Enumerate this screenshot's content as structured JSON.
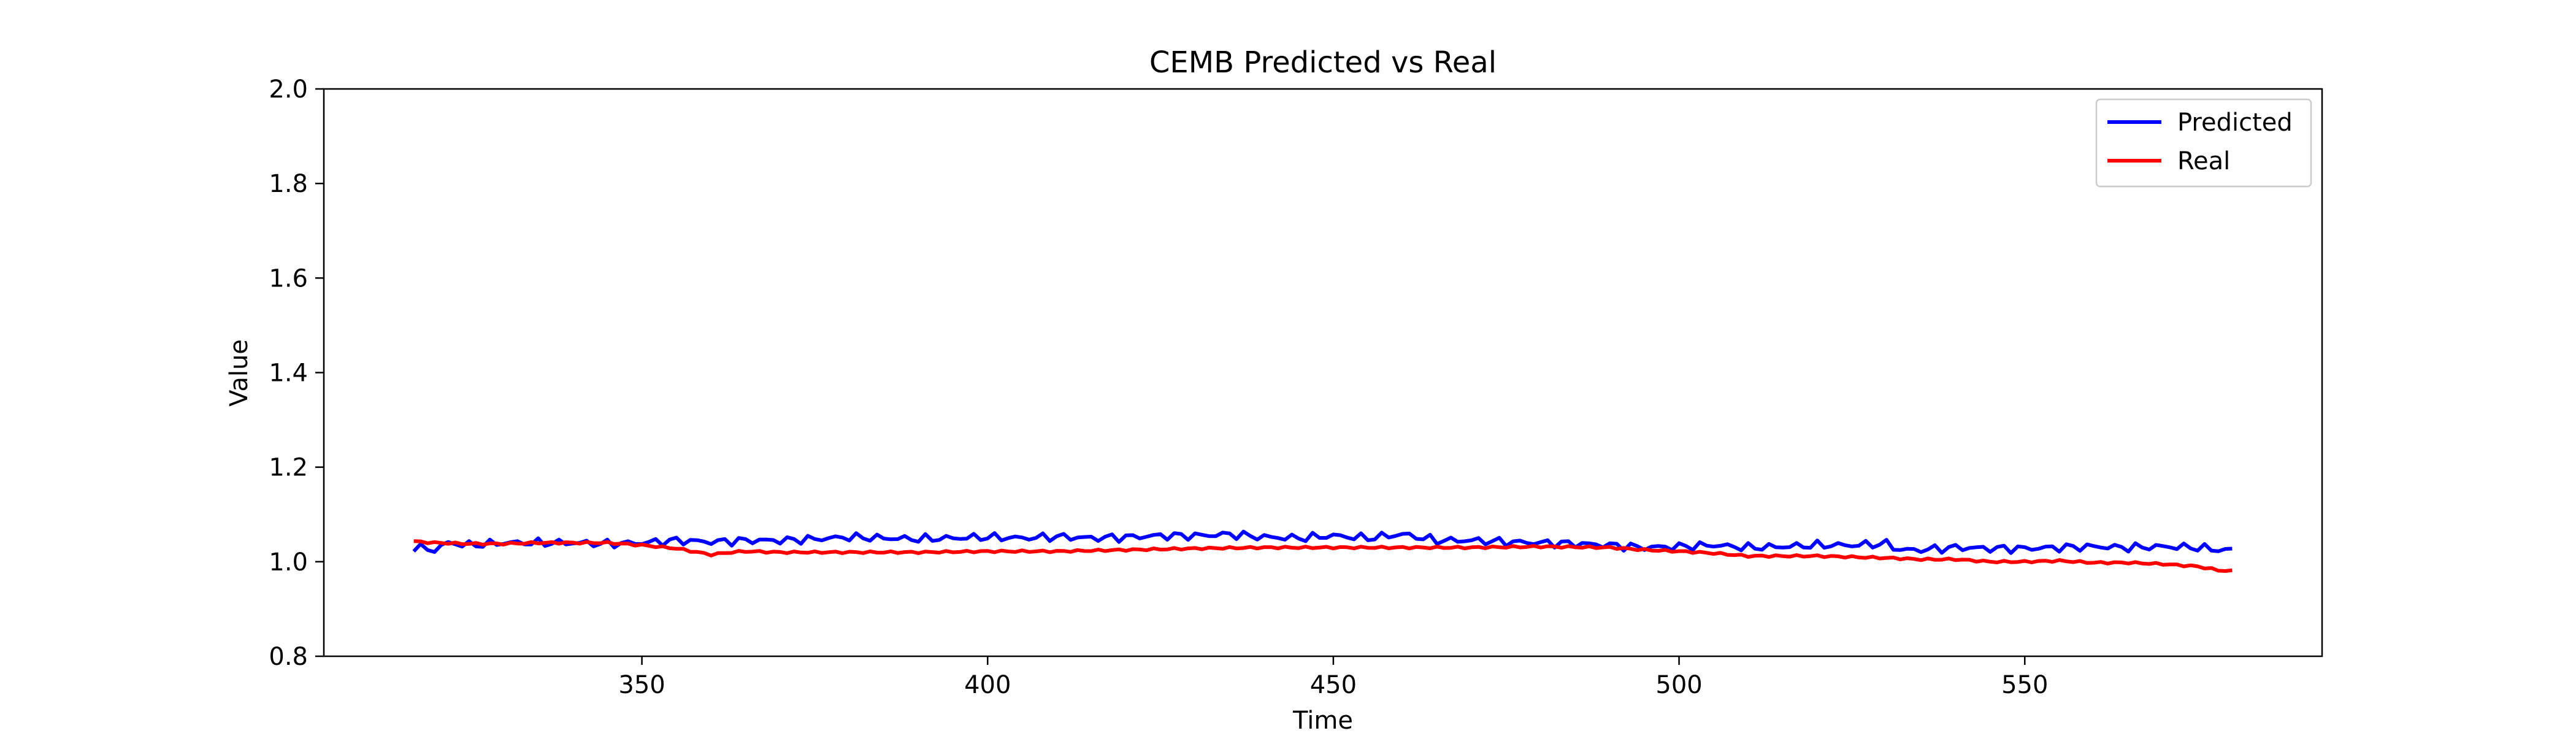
{
  "chart_data": {
    "type": "line",
    "title": "CEMB Predicted vs Real",
    "xlabel": "Time",
    "ylabel": "Value",
    "xlim": [
      304,
      593
    ],
    "ylim": [
      0.8,
      2.0
    ],
    "xticks": [
      350,
      400,
      450,
      500,
      550
    ],
    "yticks": [
      0.8,
      1.0,
      1.2,
      1.4,
      1.6,
      1.8,
      2.0
    ],
    "xtick_labels": [
      "350",
      "400",
      "450",
      "500",
      "550"
    ],
    "ytick_labels": [
      "0.8",
      "1.0",
      "1.2",
      "1.4",
      "1.6",
      "1.8",
      "2.0"
    ],
    "grid": false,
    "legend_position": "top-right",
    "x_start": 317,
    "x_end": 580,
    "series": [
      {
        "name": "Predicted",
        "color": "#0000ff",
        "keypoints": [
          [
            317,
            1.03
          ],
          [
            320,
            1.025
          ],
          [
            322,
            1.04
          ],
          [
            325,
            1.035
          ],
          [
            330,
            1.04
          ],
          [
            335,
            1.04
          ],
          [
            340,
            1.04
          ],
          [
            345,
            1.038
          ],
          [
            350,
            1.04
          ],
          [
            355,
            1.045
          ],
          [
            360,
            1.042
          ],
          [
            365,
            1.045
          ],
          [
            370,
            1.045
          ],
          [
            375,
            1.048
          ],
          [
            380,
            1.052
          ],
          [
            385,
            1.05
          ],
          [
            390,
            1.048
          ],
          [
            395,
            1.05
          ],
          [
            400,
            1.052
          ],
          [
            405,
            1.05
          ],
          [
            410,
            1.053
          ],
          [
            415,
            1.05
          ],
          [
            420,
            1.052
          ],
          [
            425,
            1.055
          ],
          [
            430,
            1.055
          ],
          [
            435,
            1.058
          ],
          [
            440,
            1.052
          ],
          [
            445,
            1.05
          ],
          [
            450,
            1.055
          ],
          [
            455,
            1.05
          ],
          [
            460,
            1.058
          ],
          [
            465,
            1.045
          ],
          [
            470,
            1.045
          ],
          [
            475,
            1.042
          ],
          [
            480,
            1.04
          ],
          [
            485,
            1.038
          ],
          [
            490,
            1.035
          ],
          [
            495,
            1.03
          ],
          [
            500,
            1.032
          ],
          [
            505,
            1.035
          ],
          [
            510,
            1.03
          ],
          [
            515,
            1.032
          ],
          [
            520,
            1.035
          ],
          [
            525,
            1.035
          ],
          [
            530,
            1.038
          ],
          [
            532,
            1.025
          ],
          [
            535,
            1.025
          ],
          [
            540,
            1.03
          ],
          [
            545,
            1.028
          ],
          [
            550,
            1.028
          ],
          [
            555,
            1.03
          ],
          [
            560,
            1.032
          ],
          [
            565,
            1.03
          ],
          [
            570,
            1.032
          ],
          [
            575,
            1.03
          ],
          [
            578,
            1.025
          ],
          [
            580,
            1.025
          ]
        ]
      },
      {
        "name": "Real",
        "color": "#ff0000",
        "keypoints": [
          [
            317,
            1.043
          ],
          [
            320,
            1.04
          ],
          [
            325,
            1.038
          ],
          [
            330,
            1.038
          ],
          [
            335,
            1.04
          ],
          [
            340,
            1.04
          ],
          [
            345,
            1.04
          ],
          [
            350,
            1.035
          ],
          [
            355,
            1.028
          ],
          [
            360,
            1.015
          ],
          [
            363,
            1.02
          ],
          [
            365,
            1.022
          ],
          [
            370,
            1.02
          ],
          [
            380,
            1.02
          ],
          [
            390,
            1.02
          ],
          [
            400,
            1.022
          ],
          [
            410,
            1.022
          ],
          [
            420,
            1.025
          ],
          [
            430,
            1.028
          ],
          [
            440,
            1.03
          ],
          [
            450,
            1.03
          ],
          [
            460,
            1.03
          ],
          [
            470,
            1.03
          ],
          [
            480,
            1.032
          ],
          [
            490,
            1.03
          ],
          [
            495,
            1.025
          ],
          [
            500,
            1.022
          ],
          [
            505,
            1.018
          ],
          [
            510,
            1.012
          ],
          [
            515,
            1.012
          ],
          [
            520,
            1.012
          ],
          [
            525,
            1.01
          ],
          [
            530,
            1.008
          ],
          [
            535,
            1.005
          ],
          [
            540,
            1.005
          ],
          [
            545,
            1.0
          ],
          [
            550,
            1.0
          ],
          [
            555,
            1.002
          ],
          [
            560,
            0.998
          ],
          [
            565,
            0.998
          ],
          [
            570,
            0.995
          ],
          [
            575,
            0.99
          ],
          [
            578,
            0.982
          ],
          [
            580,
            0.98
          ]
        ]
      }
    ]
  }
}
